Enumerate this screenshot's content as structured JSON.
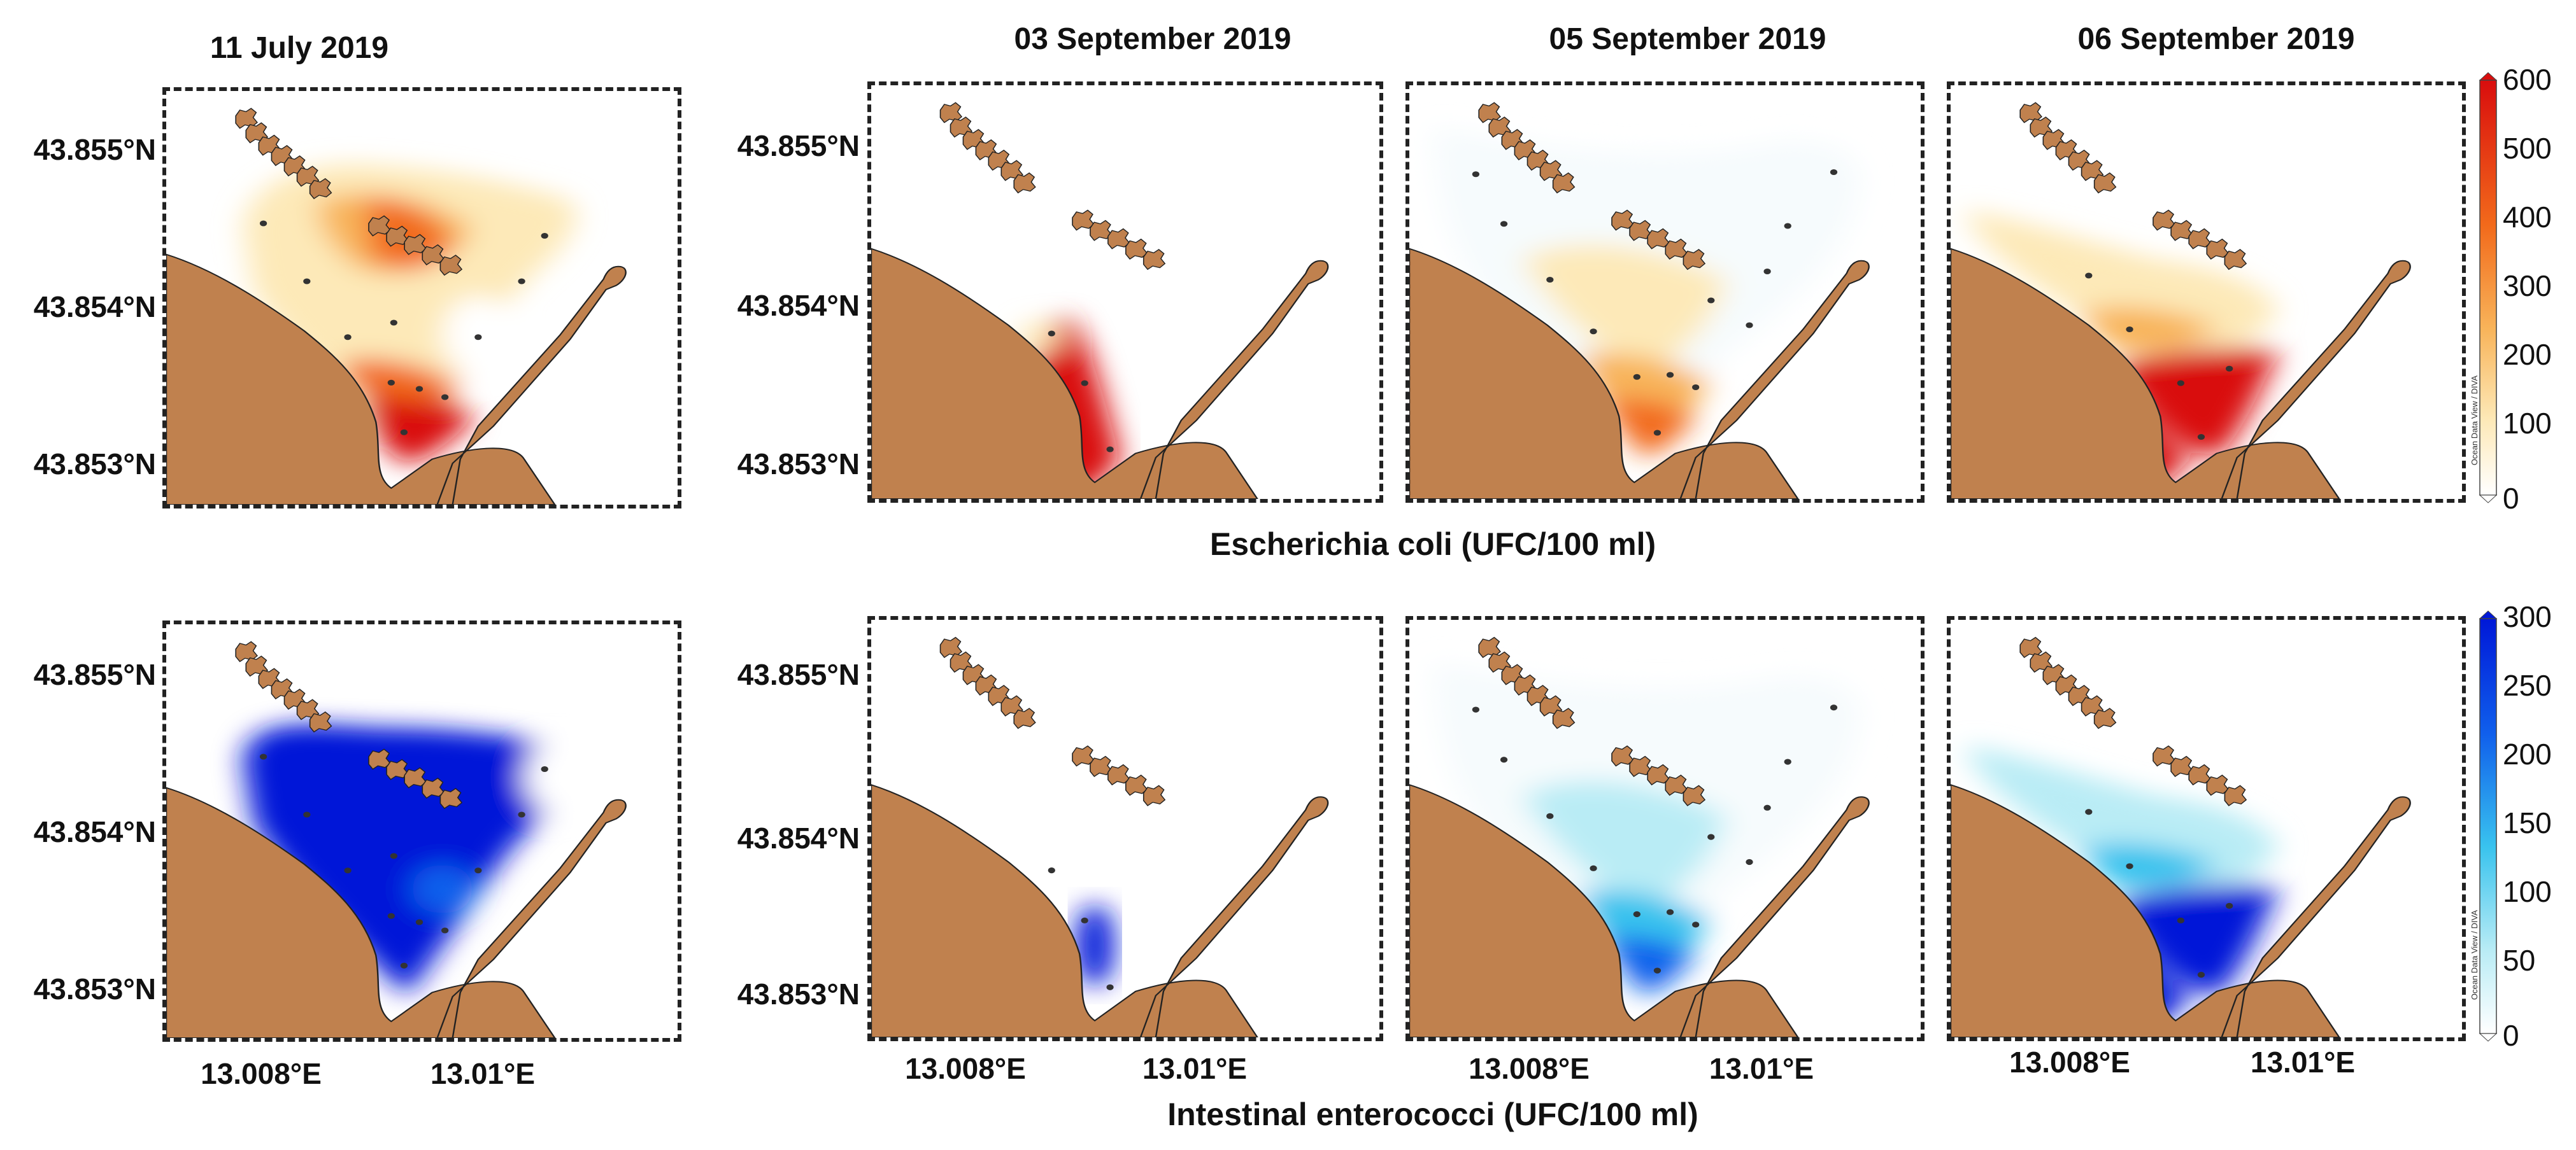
{
  "columns": [
    {
      "date": "11 July 2019",
      "ecoli_style": "hot",
      "entero_style": "full"
    },
    {
      "date": "03 September 2019",
      "ecoli_style": "harbor",
      "entero_style": "blob"
    },
    {
      "date": "05 September 2019",
      "ecoli_style": "spread",
      "entero_style": "spread"
    },
    {
      "date": "06 September 2019",
      "ecoli_style": "harbor_wide",
      "entero_style": "harbor_wide"
    }
  ],
  "lat_labels": [
    "43.855°N",
    "43.854°N",
    "43.853°N"
  ],
  "lon_labels": [
    "13.008°E",
    "13.01°E"
  ],
  "ecoli": {
    "caption": "Escherichia coli (UFC/100 ml)",
    "colorbar_ticks": [
      "600",
      "500",
      "400",
      "300",
      "200",
      "100",
      "0"
    ],
    "colorbar_range": [
      0,
      600
    ],
    "colors": [
      "#ffffff",
      "#fde9b8",
      "#f8b45a",
      "#f26a1b",
      "#d90d0d"
    ]
  },
  "entero": {
    "caption": "Intestinal enterococci (UFC/100 ml)",
    "colorbar_ticks": [
      "300",
      "250",
      "200",
      "150",
      "100",
      "50",
      "0"
    ],
    "colorbar_range": [
      0,
      300
    ],
    "colors": [
      "#ffffff",
      "#b9ecf5",
      "#39c3ee",
      "#1060ec",
      "#0018d8"
    ]
  },
  "colorbar_credit": "Ocean Data View / DIVA",
  "land_color": "#c0814e",
  "station_color": "#333333"
}
